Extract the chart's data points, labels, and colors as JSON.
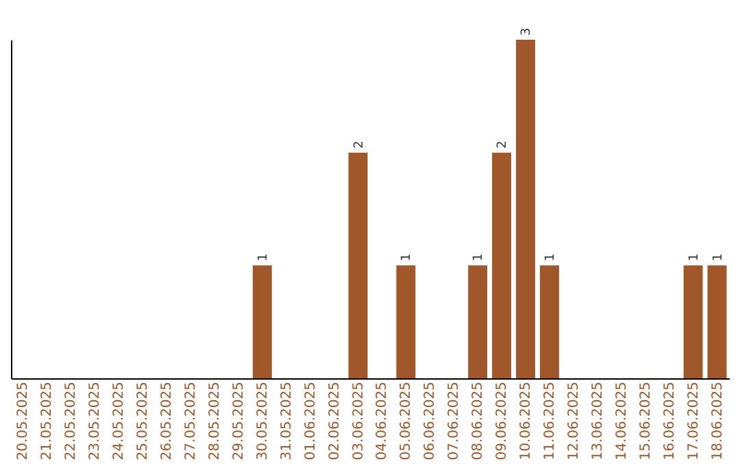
{
  "chart_data": {
    "type": "bar",
    "categories": [
      "20.05.2025",
      "21.05.2025",
      "22.05.2025",
      "23.05.2025",
      "24.05.2025",
      "25.05.2025",
      "26.05.2025",
      "27.05.2025",
      "28.05.2025",
      "29.05.2025",
      "30.05.2025",
      "31.05.2025",
      "01.06.2025",
      "02.06.2025",
      "03.06.2025",
      "04.06.2025",
      "05.06.2025",
      "06.06.2025",
      "07.06.2025",
      "08.06.2025",
      "09.06.2025",
      "10.06.2025",
      "11.06.2025",
      "12.06.2025",
      "13.06.2025",
      "14.06.2025",
      "15.06.2025",
      "16.06.2025",
      "17.06.2025",
      "18.06.2025"
    ],
    "values": [
      0,
      0,
      0,
      0,
      0,
      0,
      0,
      0,
      0,
      0,
      1,
      0,
      0,
      0,
      2,
      0,
      1,
      0,
      0,
      1,
      2,
      3,
      1,
      0,
      0,
      0,
      0,
      0,
      1,
      1
    ],
    "value_labels": [
      null,
      null,
      null,
      null,
      null,
      null,
      null,
      null,
      null,
      null,
      "1",
      null,
      null,
      null,
      "2",
      null,
      "1",
      null,
      null,
      "1",
      "2",
      "3",
      "1",
      null,
      null,
      null,
      null,
      null,
      "1",
      "1"
    ],
    "color": "#a0572a",
    "grid": false
  }
}
